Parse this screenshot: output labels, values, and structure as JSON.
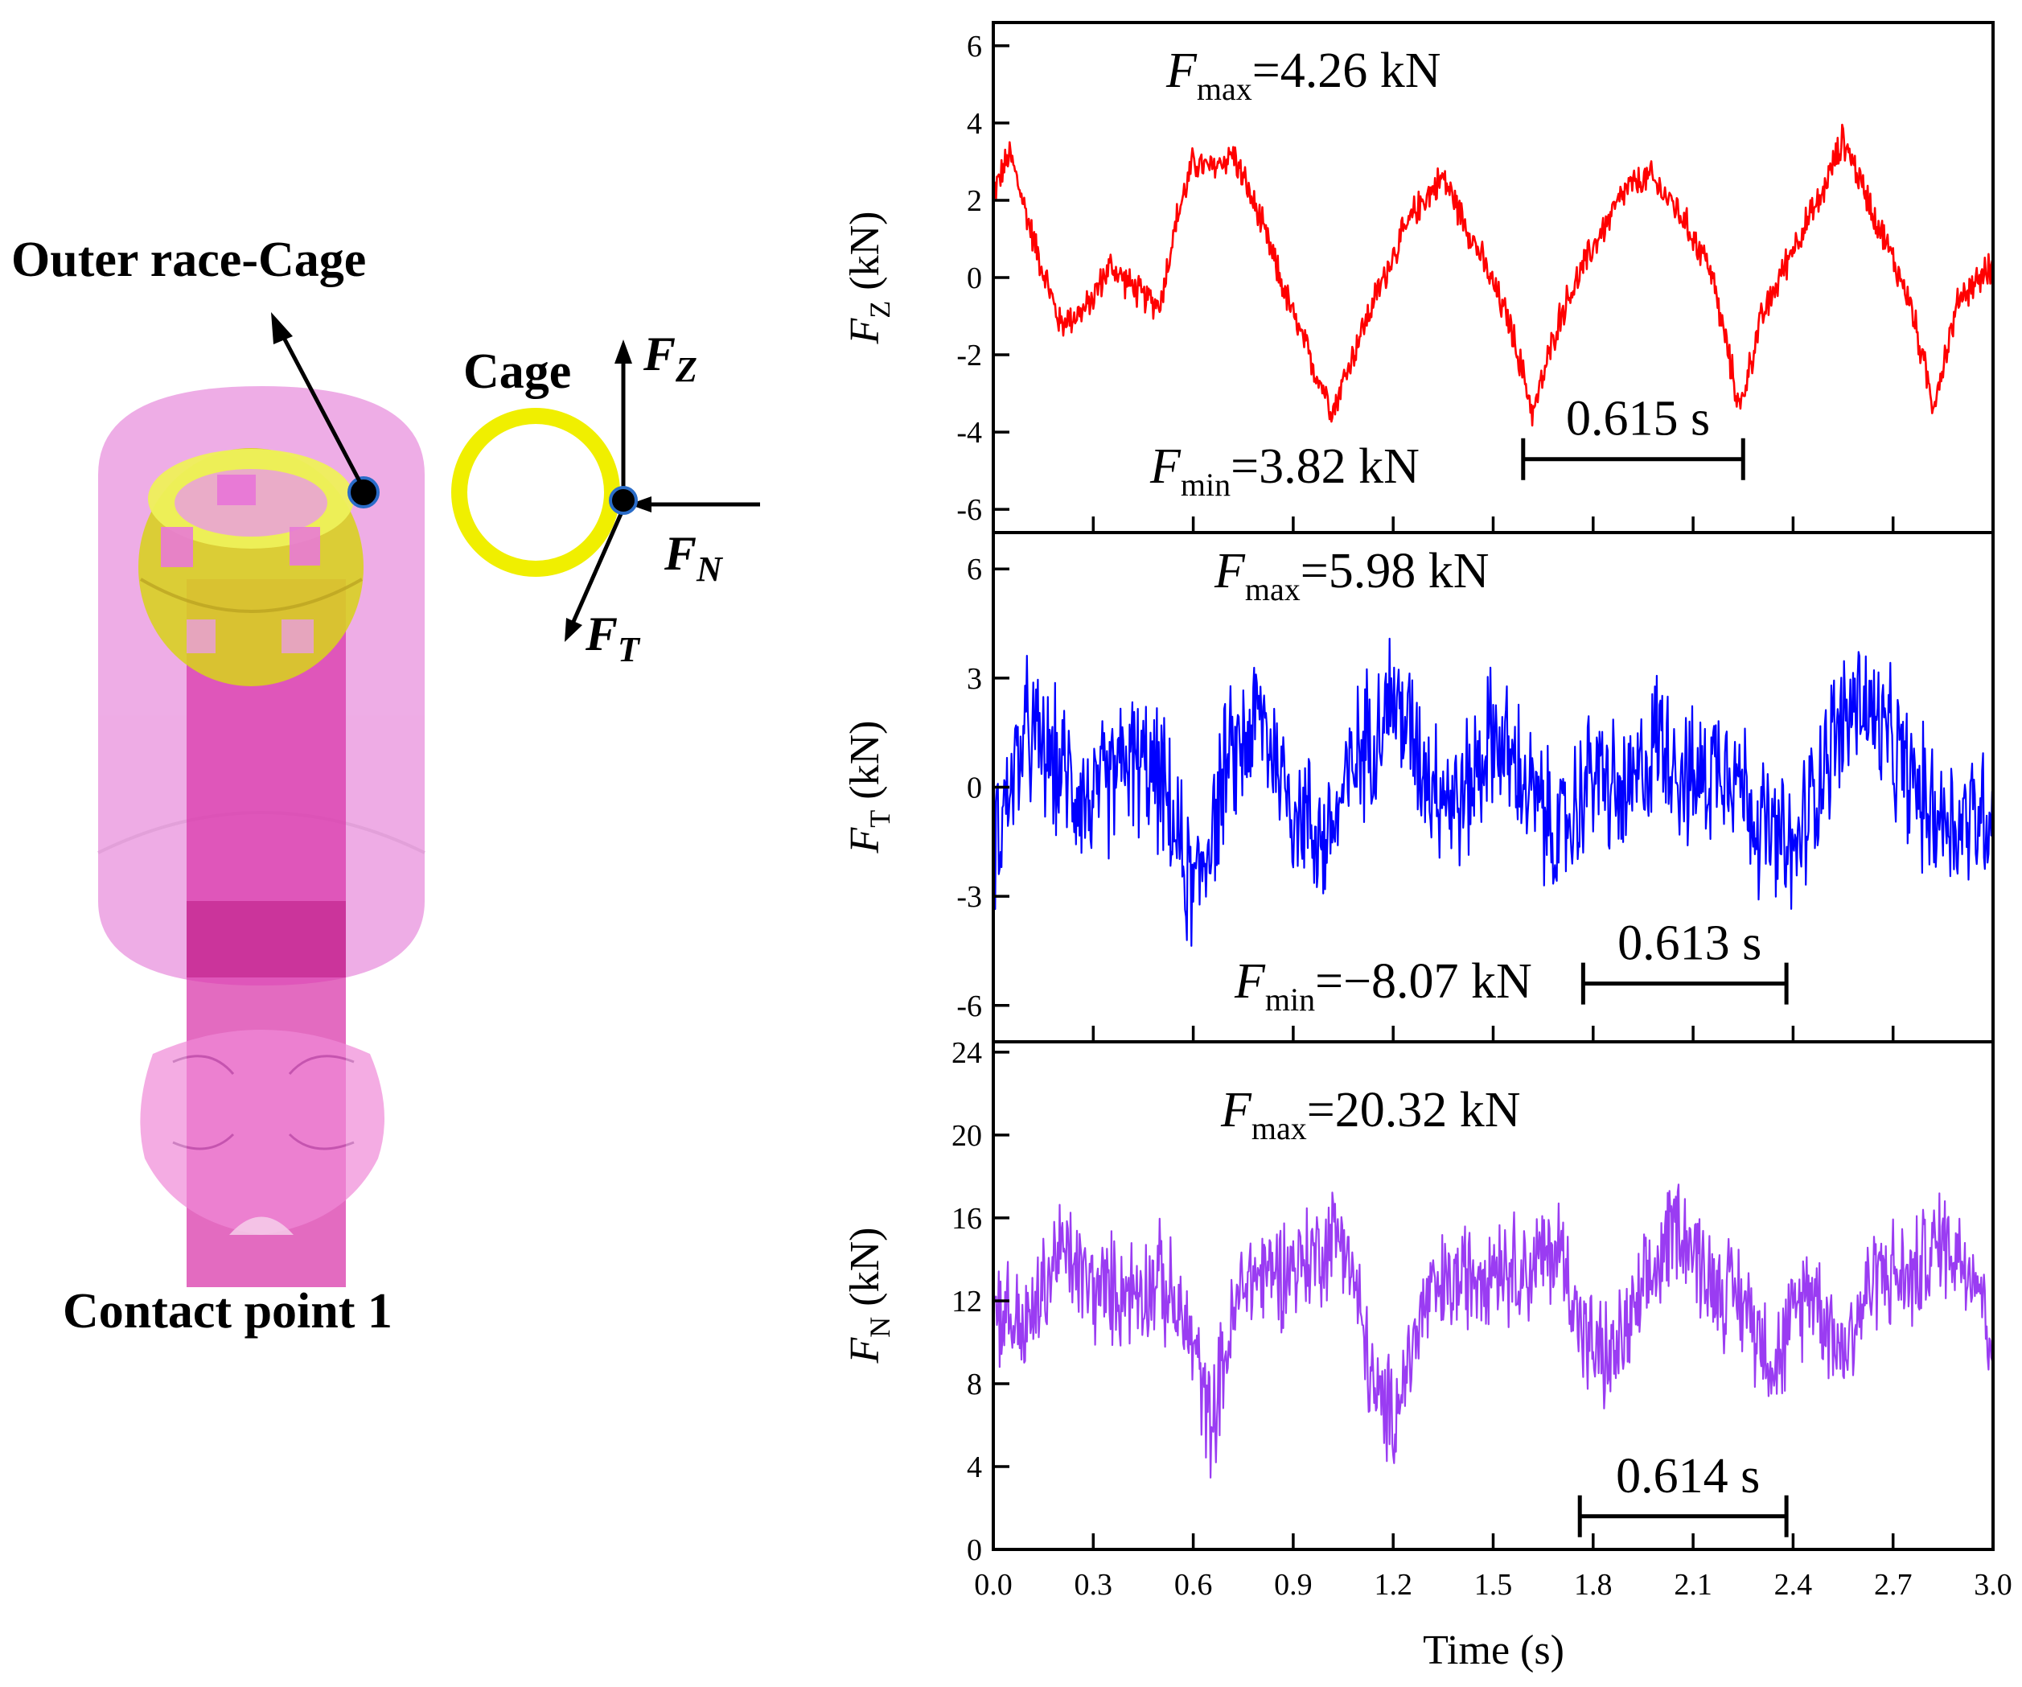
{
  "diagram": {
    "outer_race_label": "Outer race-Cage",
    "contact_point_label": "Contact point 1",
    "cage_label": "Cage",
    "force_symbol": "F",
    "force_z_sub": "Z",
    "force_n_sub": "N",
    "force_t_sub": "T",
    "colors": {
      "housing": "#e47ad6",
      "shaft": "#d93aab",
      "cage_ring": "#f0ef00",
      "cage_ball": "#d8d21e"
    }
  },
  "chart_data": [
    {
      "type": "line",
      "series": [
        {
          "name": "",
          "color": "#ff0000"
        }
      ],
      "ylabel_main": "F",
      "ylabel_sub": "Z",
      "ylabel_unit": "(kN)",
      "xlim": [
        0,
        3.0
      ],
      "ylim": [
        -6.6,
        6.6
      ],
      "yticks": [
        "-6",
        "-4",
        "-2",
        "0",
        "2",
        "4",
        "6"
      ],
      "ytick_values": [
        -6,
        -4,
        -2,
        0,
        2,
        4,
        6
      ],
      "max_annotation": {
        "symbol": "F",
        "sub": "max",
        "text": "=4.26 kN"
      },
      "min_annotation": {
        "symbol": "F",
        "sub": "min",
        "text": "=3.82 kN"
      },
      "period": {
        "label": "0.615 s",
        "t_start": 1.59,
        "t_end": 2.25,
        "y": -4.7
      },
      "waveform": {
        "trend_t": [
          0.0,
          0.05,
          0.12,
          0.2,
          0.28,
          0.35,
          0.45,
          0.5,
          0.55,
          0.6,
          0.65,
          0.72,
          0.8,
          0.9,
          0.97,
          1.02,
          1.1,
          1.2,
          1.27,
          1.35,
          1.45,
          1.55,
          1.62,
          1.7,
          1.8,
          1.9,
          1.97,
          2.05,
          2.15,
          2.24,
          2.3,
          2.4,
          2.48,
          2.55,
          2.65,
          2.75,
          2.82,
          2.9,
          3.0
        ],
        "trend_y": [
          2.2,
          3.2,
          1.0,
          -1.2,
          -0.8,
          0.3,
          -0.5,
          -0.7,
          1.5,
          3.0,
          2.8,
          3.2,
          1.5,
          -1.0,
          -2.5,
          -3.4,
          -1.5,
          0.6,
          1.8,
          2.6,
          0.8,
          -1.2,
          -3.5,
          -1.0,
          0.8,
          2.3,
          2.6,
          1.8,
          0.3,
          -3.4,
          -1.2,
          0.8,
          2.0,
          3.6,
          1.5,
          -0.6,
          -3.3,
          -0.5,
          0.3
        ],
        "noise": 0.35
      }
    },
    {
      "type": "line",
      "series": [
        {
          "name": "",
          "color": "#0000ff"
        }
      ],
      "ylabel_main": "F",
      "ylabel_sub": "T",
      "ylabel_unit": "(kN)",
      "xlim": [
        0,
        3.0
      ],
      "ylim": [
        -7.0,
        7.0
      ],
      "yticks": [
        "-6",
        "-3",
        "0",
        "3",
        "6"
      ],
      "ytick_values": [
        -6,
        -3,
        0,
        3,
        6
      ],
      "max_annotation": {
        "symbol": "F",
        "sub": "max",
        "text": "=5.98 kN"
      },
      "min_annotation": {
        "symbol": "F",
        "sub": "min",
        "text": "=−8.07 kN"
      },
      "period": {
        "label": "0.613 s",
        "t_start": 1.77,
        "t_end": 2.38,
        "y": -5.4
      },
      "waveform": {
        "trend_t": [
          0.0,
          0.1,
          0.2,
          0.3,
          0.4,
          0.5,
          0.6,
          0.7,
          0.8,
          0.9,
          1.0,
          1.1,
          1.2,
          1.3,
          1.4,
          1.5,
          1.6,
          1.7,
          1.8,
          1.9,
          2.0,
          2.1,
          2.2,
          2.3,
          2.4,
          2.5,
          2.6,
          2.7,
          2.8,
          2.9,
          3.0
        ],
        "trend_y": [
          -1.5,
          1.5,
          0.5,
          -0.5,
          0.8,
          0.2,
          -3.0,
          0.5,
          2.0,
          -0.5,
          -1.5,
          1.0,
          2.5,
          0.5,
          -0.5,
          1.5,
          0.0,
          -1.5,
          0.5,
          -0.5,
          1.5,
          0.0,
          1.0,
          -1.0,
          -2.0,
          1.0,
          2.5,
          1.0,
          -0.5,
          -1.0,
          -0.5
        ],
        "noise": 1.6
      }
    },
    {
      "type": "line",
      "series": [
        {
          "name": "",
          "color": "#9a3cf2"
        }
      ],
      "ylabel_main": "F",
      "ylabel_sub": "N",
      "ylabel_unit": "(kN)",
      "xlim": [
        0,
        3.0
      ],
      "ylim": [
        0,
        24.5
      ],
      "yticks": [
        "0",
        "4",
        "8",
        "12",
        "16",
        "20",
        "24"
      ],
      "ytick_values": [
        0,
        4,
        8,
        12,
        16,
        20,
        24
      ],
      "max_annotation": {
        "symbol": "F",
        "sub": "max",
        "text": "=20.32 kN"
      },
      "period": {
        "label": "0.614 s",
        "t_start": 1.76,
        "t_end": 2.38,
        "y": 1.6
      },
      "waveform": {
        "trend_t": [
          0.0,
          0.1,
          0.2,
          0.3,
          0.4,
          0.5,
          0.6,
          0.65,
          0.75,
          0.85,
          0.95,
          1.05,
          1.15,
          1.2,
          1.3,
          1.4,
          1.5,
          1.6,
          1.7,
          1.78,
          1.85,
          1.95,
          2.05,
          2.15,
          2.25,
          2.35,
          2.45,
          2.55,
          2.65,
          2.75,
          2.85,
          2.95,
          3.0
        ],
        "trend_y": [
          12.0,
          10.5,
          14.5,
          12.5,
          12.5,
          13.0,
          10.0,
          6.0,
          13.0,
          13.5,
          14.0,
          15.5,
          7.0,
          6.5,
          12.0,
          13.0,
          14.0,
          13.5,
          14.5,
          10.0,
          9.0,
          12.0,
          16.0,
          13.0,
          12.0,
          9.0,
          13.0,
          9.5,
          13.5,
          13.0,
          15.0,
          13.5,
          10.0
        ],
        "noise": 2.2
      }
    }
  ],
  "shared_x": {
    "xlabel": "Time (s)",
    "xticks": [
      "0.0",
      "0.3",
      "0.6",
      "0.9",
      "1.2",
      "1.5",
      "1.8",
      "2.1",
      "2.4",
      "2.7",
      "3.0"
    ],
    "xtick_values": [
      0.0,
      0.3,
      0.6,
      0.9,
      1.2,
      1.5,
      1.8,
      2.1,
      2.4,
      2.7,
      3.0
    ]
  }
}
